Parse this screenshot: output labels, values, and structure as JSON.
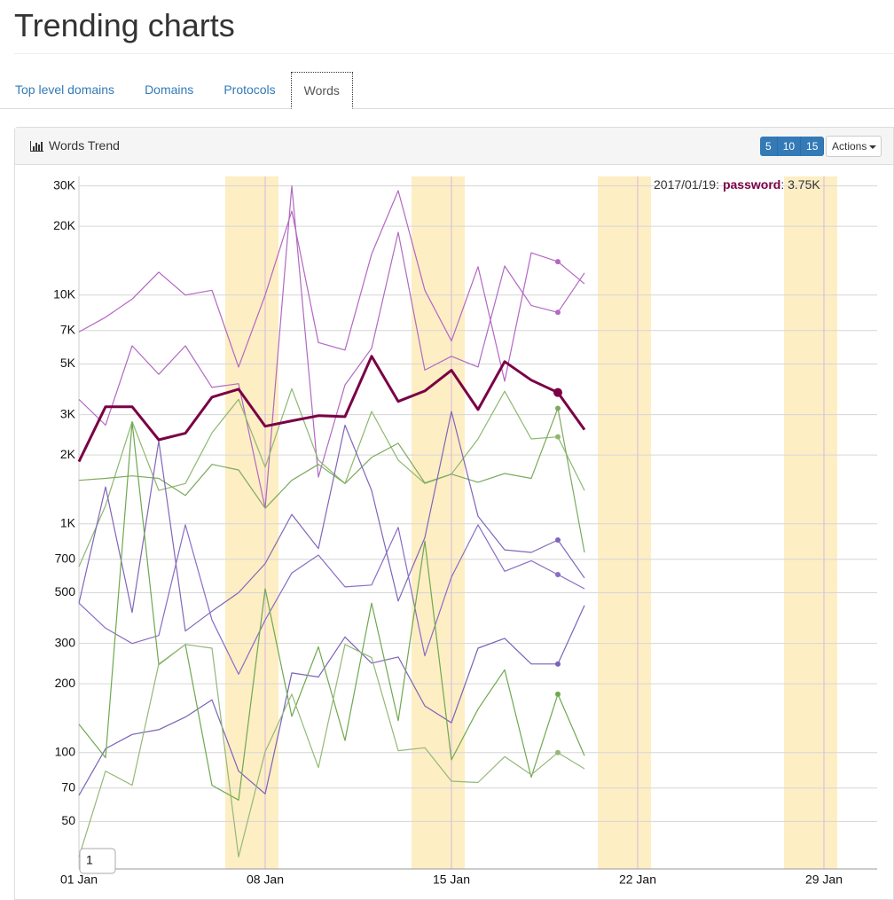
{
  "header": {
    "title": "Trending charts"
  },
  "tabs": [
    "Top level domains",
    "Domains",
    "Protocols",
    "Words"
  ],
  "panel": {
    "title": "Words Trend",
    "page_sizes": [
      "5",
      "10",
      "15"
    ],
    "actions": "Actions"
  },
  "chart_data": {
    "type": "line",
    "log_y": true,
    "grid": true,
    "x": [
      1,
      2,
      3,
      4,
      5,
      6,
      7,
      8,
      9,
      10,
      11,
      12,
      13,
      14,
      15,
      16,
      17,
      18,
      19,
      20
    ],
    "xlim": [
      1,
      31
    ],
    "xticks": [
      {
        "value": 1,
        "label": "01 Jan"
      },
      {
        "value": 8,
        "label": "08 Jan"
      },
      {
        "value": 15,
        "label": "15 Jan"
      },
      {
        "value": 22,
        "label": "22 Jan"
      },
      {
        "value": 29,
        "label": "29 Jan"
      }
    ],
    "ylim": [
      31,
      33000
    ],
    "yticks": [
      50,
      70,
      100,
      200,
      300,
      500,
      700,
      {
        "value": 1000,
        "label": "1K"
      },
      {
        "value": 2000,
        "label": "2K"
      },
      {
        "value": 3000,
        "label": "3K"
      },
      {
        "value": 5000,
        "label": "5K"
      },
      {
        "value": 7000,
        "label": "7K"
      },
      {
        "value": 10000,
        "label": "10K"
      },
      {
        "value": 20000,
        "label": "20K"
      },
      {
        "value": 30000,
        "label": "30K"
      }
    ],
    "bands": [
      [
        6.5,
        8.5
      ],
      [
        13.5,
        15.5
      ],
      [
        20.5,
        22.5
      ],
      [
        27.5,
        29.5
      ]
    ],
    "band_color": "#fdeec4",
    "series": [
      {
        "color": "#b565c4",
        "values": [
          6900,
          8000,
          9600,
          12600,
          10000,
          10500,
          4850,
          10000,
          23300,
          6200,
          5750,
          15100,
          28600,
          10500,
          6300,
          13300,
          4200,
          15300,
          14000,
          11200
        ]
      },
      {
        "color": "#b06ac0",
        "values": [
          3500,
          2700,
          6000,
          4500,
          6000,
          3950,
          4100,
          1170,
          30000,
          1600,
          4050,
          5850,
          18800,
          4700,
          5400,
          4850,
          13400,
          9000,
          8400,
          12500
        ]
      },
      {
        "color": "#8db870",
        "values": [
          650,
          1200,
          2800,
          1400,
          1500,
          2500,
          3500,
          1770,
          3900,
          1900,
          1500,
          3100,
          1900,
          1500,
          1650,
          2350,
          3800,
          2350,
          2400,
          1400
        ]
      },
      {
        "color": "#7daa5f",
        "values": [
          1550,
          1580,
          1620,
          1580,
          1330,
          1820,
          1720,
          1170,
          1550,
          1820,
          1500,
          1950,
          2250,
          1510,
          1650,
          1520,
          1660,
          1580,
          3200,
          750
        ]
      },
      {
        "color": "#8066b8",
        "values": [
          450,
          1450,
          410,
          2300,
          340,
          415,
          500,
          670,
          1100,
          780,
          2700,
          1400,
          460,
          870,
          3100,
          1080,
          770,
          750,
          850,
          580
        ]
      },
      {
        "color": "#8a6cc6",
        "values": [
          450,
          350,
          300,
          325,
          990,
          380,
          220,
          380,
          610,
          730,
          530,
          540,
          965,
          265,
          585,
          990,
          620,
          690,
          600,
          520
        ]
      },
      {
        "color": "#7a62b8",
        "values": [
          65,
          104,
          120,
          126,
          143,
          170,
          83,
          66,
          223,
          214,
          320,
          246,
          262,
          160,
          135,
          286,
          316,
          244,
          244,
          440
        ]
      },
      {
        "color": "#6fa84f",
        "values": [
          133,
          95,
          2780,
          242,
          297,
          72,
          62,
          520,
          144,
          290,
          113,
          450,
          138,
          840,
          93,
          155,
          230,
          78,
          180,
          97
        ]
      },
      {
        "color": "#94b878",
        "values": [
          35,
          83,
          72,
          244,
          297,
          286,
          35,
          101,
          180,
          86,
          297,
          260,
          102,
          105,
          75,
          74,
          96,
          80,
          100,
          85
        ]
      },
      {
        "name": "password",
        "color": "#7a0045",
        "values": [
          1870,
          3250,
          3250,
          2330,
          2490,
          3580,
          3880,
          2670,
          2820,
          2970,
          2940,
          5400,
          3430,
          3810,
          4690,
          3160,
          5120,
          4250,
          3750,
          2580
        ]
      }
    ],
    "hover": {
      "x": 19,
      "date": "2017/01/19:",
      "value_label": ": 3.75K"
    },
    "zoom_label": "1"
  }
}
